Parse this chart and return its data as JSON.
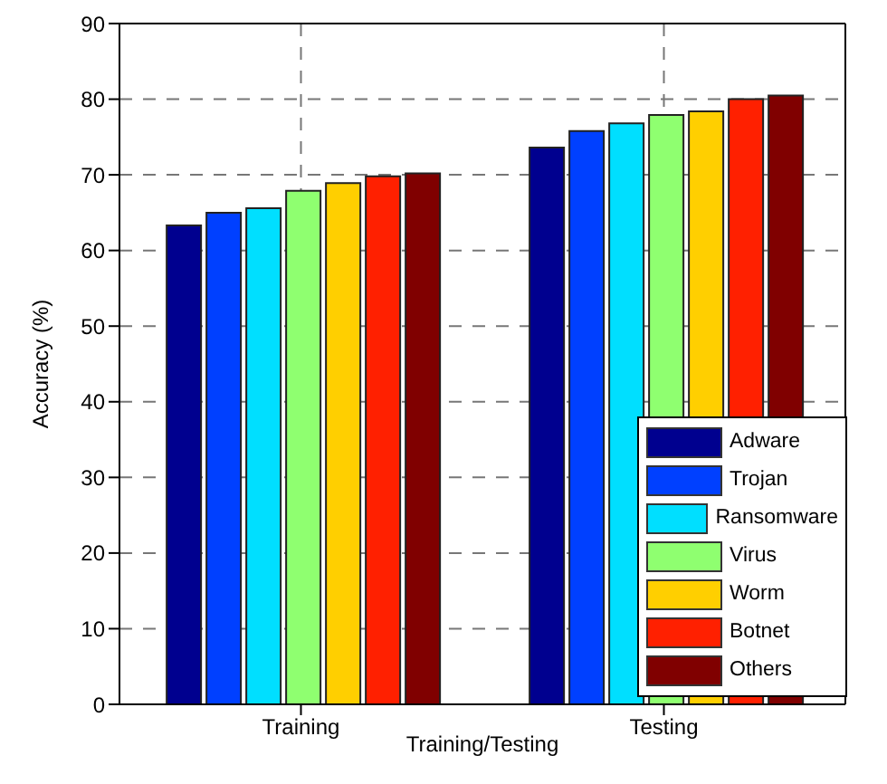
{
  "chart_data": {
    "type": "bar",
    "xlabel": "Training/Testing",
    "ylabel": "Accuracy  (%)",
    "categories": [
      "Training",
      "Testing"
    ],
    "series": [
      {
        "name": "Adware",
        "color": "#00008f",
        "values": [
          63.3,
          73.6
        ]
      },
      {
        "name": "Trojan",
        "color": "#0040ff",
        "values": [
          65.0,
          75.8
        ]
      },
      {
        "name": "Ransomware",
        "color": "#00dfff",
        "values": [
          65.6,
          76.8
        ]
      },
      {
        "name": "Virus",
        "color": "#8fff70",
        "values": [
          67.9,
          77.9
        ]
      },
      {
        "name": "Worm",
        "color": "#ffcf00",
        "values": [
          68.9,
          78.4
        ]
      },
      {
        "name": "Botnet",
        "color": "#ff2000",
        "values": [
          69.8,
          80.0
        ]
      },
      {
        "name": "Others",
        "color": "#800000",
        "values": [
          70.2,
          80.5
        ]
      }
    ],
    "ylim": [
      0,
      90
    ],
    "yticks": [
      0,
      10,
      20,
      30,
      40,
      50,
      60,
      70,
      80,
      90
    ],
    "grid": true,
    "legend": "bottom right"
  }
}
